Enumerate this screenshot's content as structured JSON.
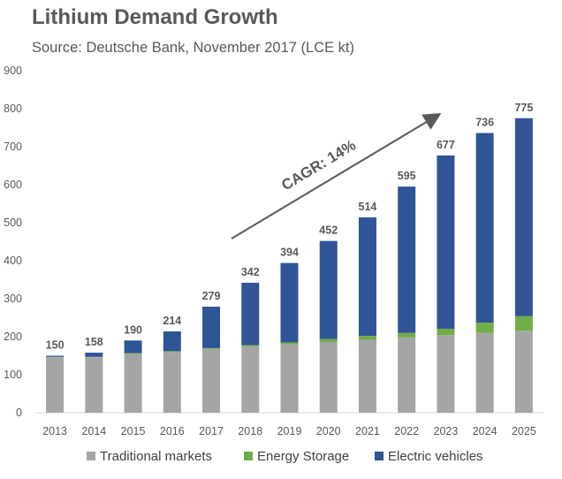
{
  "chart_data": {
    "type": "bar",
    "stacked": true,
    "title": "Lithium Demand Growth",
    "subtitle": "Source: Deutsche Bank, November 2017 (LCE kt)",
    "categories": [
      "2013",
      "2014",
      "2015",
      "2016",
      "2017",
      "2018",
      "2019",
      "2020",
      "2021",
      "2022",
      "2023",
      "2024",
      "2025"
    ],
    "series": [
      {
        "name": "Traditional markets",
        "color": "#a5a5a5",
        "values": [
          146,
          146,
          156,
          160,
          168,
          175,
          180,
          186,
          192,
          198,
          204,
          210,
          216
        ]
      },
      {
        "name": "Energy Storage",
        "color": "#70ad47",
        "values": [
          1,
          1,
          1,
          2,
          2,
          3,
          5,
          8,
          10,
          12,
          17,
          27,
          38
        ]
      },
      {
        "name": "Electric vehicles",
        "color": "#2f5597",
        "values": [
          3,
          11,
          33,
          52,
          109,
          164,
          209,
          258,
          312,
          385,
          456,
          499,
          521
        ]
      }
    ],
    "totals": [
      150,
      158,
      190,
      214,
      279,
      342,
      394,
      452,
      514,
      595,
      677,
      736,
      775
    ],
    "ylim": [
      0,
      900
    ],
    "yticks": [
      0,
      100,
      200,
      300,
      400,
      500,
      600,
      700,
      800,
      900
    ],
    "xlabel": "",
    "ylabel": "",
    "grid": false,
    "legend_position": "bottom",
    "annotation": {
      "text": "CAGR: 14%"
    }
  }
}
